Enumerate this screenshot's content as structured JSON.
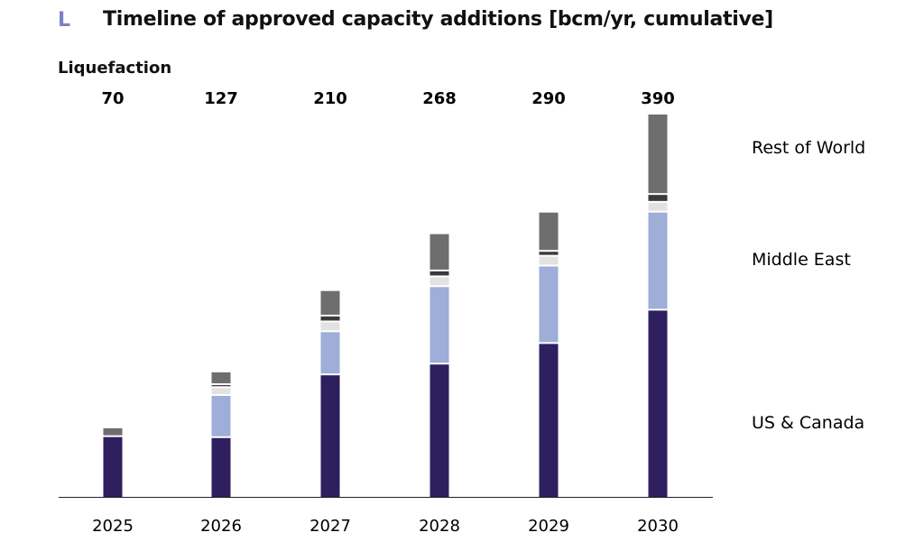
{
  "panel_letter": "L",
  "title": "Timeline of approved capacity additions [bcm/yr, cumulative]",
  "chart_data": {
    "type": "bar",
    "stacked": true,
    "title": "Timeline of approved capacity additions [bcm/yr, cumulative]",
    "subtitle": "Liquefaction",
    "categories": [
      "2025",
      "2026",
      "2027",
      "2028",
      "2029",
      "2030"
    ],
    "totals": [
      70,
      127,
      210,
      268,
      290,
      390
    ],
    "series": [
      {
        "name": "US & Canada",
        "color": "#2e1f5e",
        "values": [
          61,
          60,
          124,
          135,
          156,
          190
        ]
      },
      {
        "name": "Middle East",
        "color": "#9eaed8",
        "values": [
          0,
          43,
          44,
          79,
          79,
          100
        ]
      },
      {
        "color": "#e2e2e2",
        "values": [
          0,
          8,
          10,
          10,
          10,
          10
        ]
      },
      {
        "color": "#3a3a3a",
        "values": [
          0,
          3,
          6,
          6,
          5,
          8
        ]
      },
      {
        "name": "Rest of World",
        "color": "#6e6e6e",
        "values": [
          9,
          13,
          26,
          38,
          40,
          82
        ]
      }
    ],
    "legend_labels": [
      "Rest of World",
      "Middle East",
      "US & Canada"
    ],
    "legend_position": "right",
    "ylim": [
      0,
      390
    ],
    "grid": false
  }
}
